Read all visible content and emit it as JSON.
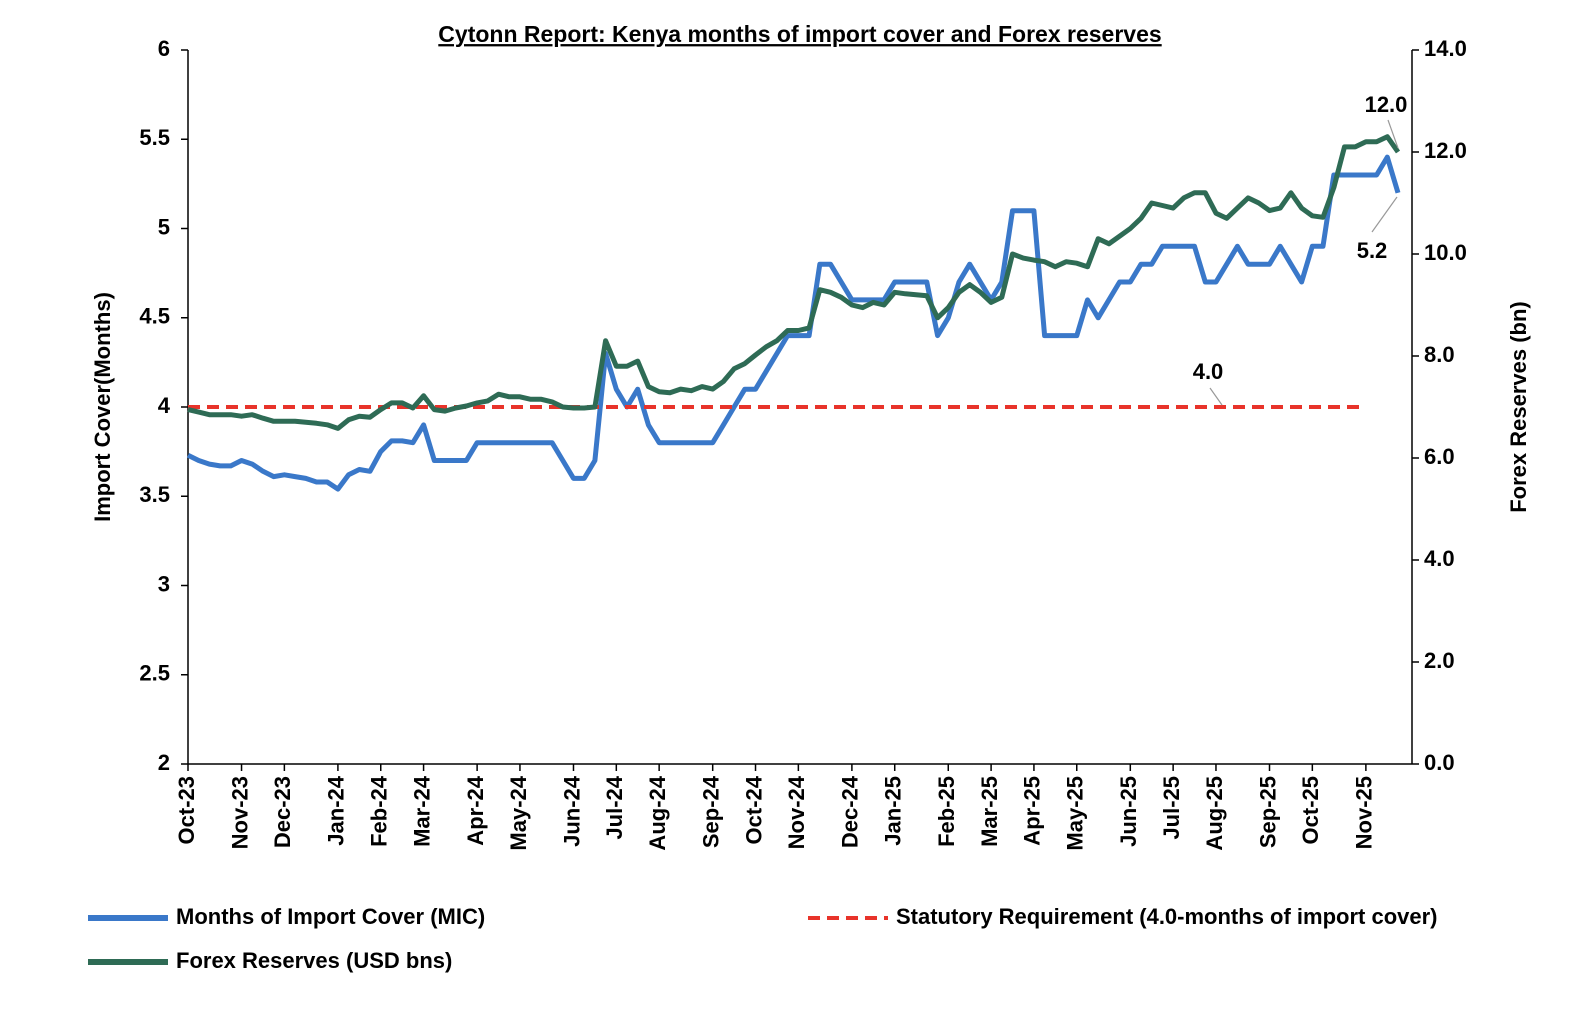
{
  "chart_data": {
    "type": "line",
    "title": "Cytonn Report: Kenya months of import cover and Forex reserves",
    "y_label": "Import Cover(Months)",
    "y2_label": "Forex Reserves (bn)",
    "categories": [
      "Oct-23",
      null,
      null,
      null,
      null,
      "Nov-23",
      null,
      null,
      null,
      "Dec-23",
      null,
      null,
      null,
      null,
      "Jan-24",
      null,
      null,
      null,
      "Feb-24",
      null,
      null,
      null,
      "Mar-24",
      null,
      null,
      null,
      null,
      "Apr-24",
      null,
      null,
      null,
      "May-24",
      null,
      null,
      null,
      null,
      "Jun-24",
      null,
      null,
      null,
      "Jul-24",
      null,
      null,
      null,
      "Aug-24",
      null,
      null,
      null,
      null,
      "Sep-24",
      null,
      null,
      null,
      "Oct-24",
      null,
      null,
      null,
      "Nov-24",
      null,
      null,
      null,
      null,
      "Dec-24",
      null,
      null,
      null,
      "Jan-25",
      null,
      null,
      null,
      null,
      "Feb-25",
      null,
      null,
      null,
      "Mar-25",
      null,
      null,
      null,
      "Apr-25",
      null,
      null,
      null,
      "May-25",
      null,
      null,
      null,
      null,
      "Jun-25",
      null,
      null,
      null,
      "Jul-25",
      null,
      null,
      null,
      "Aug-25",
      null,
      null,
      null,
      null,
      "Sep-25",
      null,
      null,
      null,
      "Oct-25",
      null,
      null,
      null,
      null,
      "Nov-25",
      null,
      null,
      null
    ],
    "ylim": [
      2,
      6
    ],
    "yticks": [
      2,
      2.5,
      3,
      3.5,
      4,
      4.5,
      5,
      5.5,
      6
    ],
    "y2lim": [
      0,
      14
    ],
    "y2ticks": [
      {
        "value": 0,
        "label": "0.0"
      },
      {
        "value": 2,
        "label": "2.0"
      },
      {
        "value": 4,
        "label": "4.0"
      },
      {
        "value": 6,
        "label": "6.0"
      },
      {
        "value": 8,
        "label": "8.0"
      },
      {
        "value": 10,
        "label": "10.0"
      },
      {
        "value": 12,
        "label": "12.0"
      },
      {
        "value": 14,
        "label": "14.0"
      }
    ],
    "series": [
      {
        "name": "Months of Import Cover (MIC)",
        "color": "#3a78c9",
        "values": [
          3.73,
          3.7,
          3.68,
          3.67,
          3.67,
          3.7,
          3.68,
          3.64,
          3.61,
          3.62,
          3.61,
          3.6,
          3.58,
          3.58,
          3.54,
          3.62,
          3.65,
          3.64,
          3.75,
          3.81,
          3.81,
          3.8,
          3.9,
          3.7,
          3.7,
          3.7,
          3.7,
          3.8,
          3.8,
          3.8,
          3.8,
          3.8,
          3.8,
          3.8,
          3.8,
          3.7,
          3.6,
          3.6,
          3.7,
          4.3,
          4.1,
          4.0,
          4.1,
          3.9,
          3.8,
          3.8,
          3.8,
          3.8,
          3.8,
          3.8,
          3.9,
          4.0,
          4.1,
          4.1,
          4.2,
          4.3,
          4.4,
          4.4,
          4.4,
          4.8,
          4.8,
          4.7,
          4.6,
          4.6,
          4.6,
          4.6,
          4.7,
          4.7,
          4.7,
          4.7,
          4.4,
          4.5,
          4.7,
          4.8,
          4.7,
          4.6,
          4.7,
          5.1,
          5.1,
          5.1,
          4.4,
          4.4,
          4.4,
          4.4,
          4.6,
          4.5,
          4.6,
          4.7,
          4.7,
          4.8,
          4.8,
          4.9,
          4.9,
          4.9,
          4.9,
          4.7,
          4.7,
          4.8,
          4.9,
          4.8,
          4.8,
          4.8,
          4.9,
          4.8,
          4.7,
          4.9,
          4.9,
          5.3,
          5.3,
          5.3,
          5.3,
          5.3,
          5.4,
          5.2
        ]
      },
      {
        "name": "Statutory Requirement (4.0-months of import cover)",
        "color": "#e8332a",
        "dashed": true,
        "values": [
          4,
          4,
          4,
          4,
          4,
          4,
          4,
          4,
          4,
          4,
          4,
          4,
          4,
          4,
          4,
          4,
          4,
          4,
          4,
          4,
          4,
          4,
          4,
          4,
          4,
          4,
          4,
          4,
          4,
          4,
          4,
          4,
          4,
          4,
          4,
          4,
          4,
          4,
          4,
          4,
          4,
          4,
          4,
          4,
          4,
          4,
          4,
          4,
          4,
          4,
          4,
          4,
          4,
          4,
          4,
          4,
          4,
          4,
          4,
          4,
          4,
          4,
          4,
          4,
          4,
          4,
          4,
          4,
          4,
          4,
          4,
          4,
          4,
          4,
          4,
          4,
          4,
          4,
          4,
          4,
          4,
          4,
          4,
          4,
          4,
          4,
          4,
          4,
          4,
          4,
          4,
          4,
          4,
          4,
          4,
          4,
          4,
          4,
          4,
          4,
          4,
          4,
          4,
          4,
          4,
          4,
          4,
          4,
          4,
          4,
          4,
          null,
          null,
          null
        ]
      },
      {
        "name": "Forex Reserves (USD bns)",
        "color": "#2e6b55",
        "axis": "y2",
        "values": [
          6.95,
          6.9,
          6.85,
          6.85,
          6.85,
          6.82,
          6.85,
          6.78,
          6.72,
          6.72,
          6.72,
          6.7,
          6.68,
          6.65,
          6.58,
          6.75,
          6.82,
          6.8,
          6.95,
          7.08,
          7.08,
          6.98,
          7.22,
          6.95,
          6.92,
          6.98,
          7.02,
          7.08,
          7.12,
          7.25,
          7.2,
          7.2,
          7.15,
          7.15,
          7.1,
          7.0,
          6.98,
          6.98,
          7.0,
          8.3,
          7.8,
          7.8,
          7.9,
          7.4,
          7.3,
          7.28,
          7.35,
          7.32,
          7.4,
          7.35,
          7.5,
          7.75,
          7.85,
          8.02,
          8.18,
          8.3,
          8.5,
          8.5,
          8.55,
          9.3,
          9.25,
          9.15,
          9.0,
          8.95,
          9.05,
          9.0,
          9.25,
          9.22,
          9.2,
          9.18,
          8.75,
          8.95,
          9.25,
          9.4,
          9.25,
          9.05,
          9.15,
          10.0,
          9.92,
          9.88,
          9.85,
          9.75,
          9.85,
          9.82,
          9.75,
          10.3,
          10.2,
          10.35,
          10.5,
          10.7,
          11.0,
          10.95,
          10.9,
          11.1,
          11.2,
          11.2,
          10.8,
          10.7,
          10.9,
          11.1,
          11.0,
          10.85,
          10.9,
          11.2,
          10.9,
          10.75,
          10.72,
          11.3,
          12.1,
          12.1,
          12.2,
          12.2,
          12.3,
          12.0
        ]
      }
    ],
    "annotations": [
      "12.0",
      "5.2",
      "4.0"
    ]
  }
}
